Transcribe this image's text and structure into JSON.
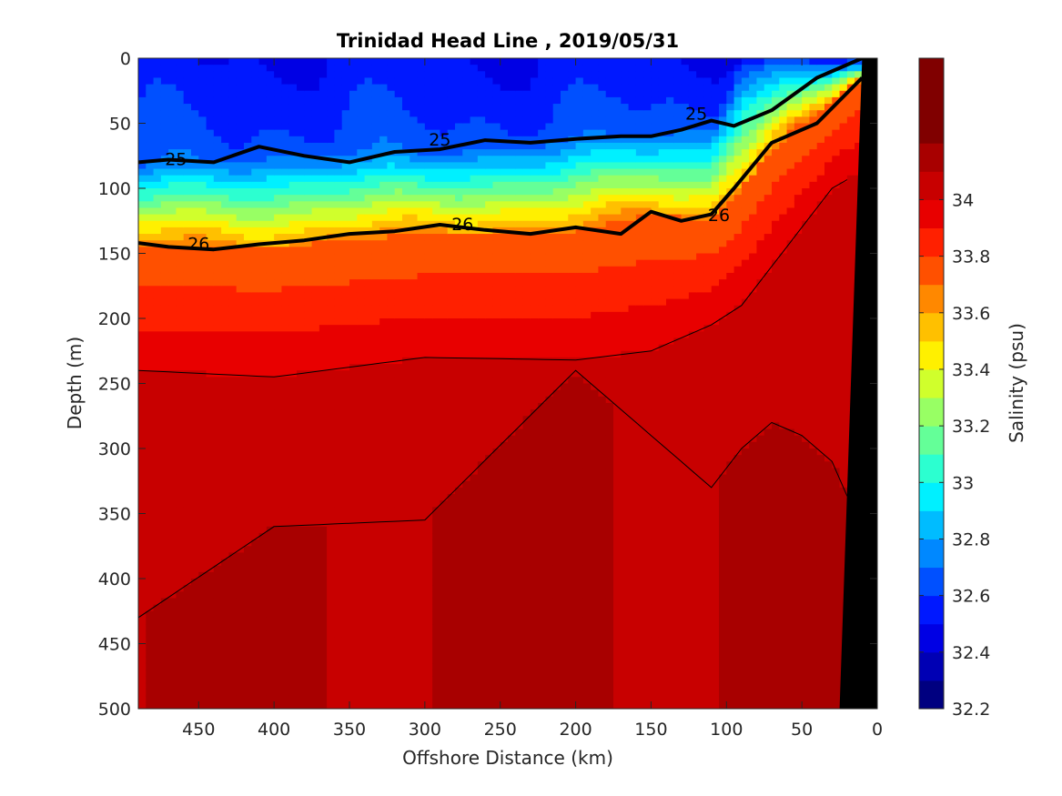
{
  "chart_data": {
    "type": "heatmap",
    "title": "Trinidad Head Line , 2019/05/31",
    "xlabel": "Offshore Distance (km)",
    "ylabel": "Depth (m)",
    "colorbar_label": "Salinity (psu)",
    "xlim": [
      490,
      0
    ],
    "ylim": [
      0,
      500
    ],
    "x_ticks": [
      "450",
      "400",
      "350",
      "300",
      "250",
      "200",
      "150",
      "100",
      "50",
      "0"
    ],
    "x_tick_values": [
      450,
      400,
      350,
      300,
      250,
      200,
      150,
      100,
      50,
      0
    ],
    "y_ticks": [
      "0",
      "50",
      "100",
      "150",
      "200",
      "250",
      "300",
      "350",
      "400",
      "450",
      "500"
    ],
    "y_tick_values": [
      0,
      50,
      100,
      150,
      200,
      250,
      300,
      350,
      400,
      450,
      500
    ],
    "colorbar_range": [
      32.2,
      34.5
    ],
    "colorbar_ticks": [
      "32.2",
      "32.4",
      "32.6",
      "32.8",
      "33",
      "33.2",
      "33.4",
      "33.6",
      "33.8",
      "34"
    ],
    "colorbar_tick_values": [
      32.2,
      32.4,
      32.6,
      32.8,
      33.0,
      33.2,
      33.4,
      33.6,
      33.8,
      34.0
    ],
    "colorbar_levels": [
      32.2,
      32.3,
      32.4,
      32.5,
      32.6,
      32.7,
      32.8,
      32.9,
      33.0,
      33.1,
      33.2,
      33.3,
      33.4,
      33.5,
      33.6,
      33.7,
      33.8,
      33.9,
      34.0,
      34.1,
      34.2,
      34.5
    ],
    "colormap": [
      "#000080",
      "#0000b4",
      "#0000e4",
      "#0018ff",
      "#0050ff",
      "#0088ff",
      "#00bcff",
      "#00f0ff",
      "#2cffd0",
      "#64ff98",
      "#98ff64",
      "#d0ff2c",
      "#fff000",
      "#ffc000",
      "#ff8800",
      "#ff5000",
      "#ff2000",
      "#e80000",
      "#c80000",
      "#a80000",
      "#800000"
    ],
    "salinity_profile": {
      "x": [
        490,
        400,
        300,
        200,
        150,
        110,
        90,
        70,
        50,
        30,
        15
      ],
      "depth_25": [
        80,
        72,
        70,
        60,
        55,
        52,
        5,
        5,
        5,
        5,
        5
      ],
      "depth_26": [
        143,
        145,
        135,
        133,
        120,
        125,
        100,
        70,
        50,
        35,
        18
      ],
      "depth_340": [
        240,
        245,
        230,
        232,
        225,
        205,
        190,
        160,
        130,
        100,
        90
      ],
      "depth_342": [
        430,
        360,
        355,
        240,
        290,
        330,
        300,
        280,
        290,
        310,
        350
      ]
    },
    "sigma_theta_contours": [
      {
        "label": "25",
        "depth": [
          80,
          78,
          80,
          68,
          75,
          80,
          72,
          70,
          63,
          65,
          62,
          60,
          60,
          55,
          48,
          52,
          40,
          15,
          0
        ]
      },
      {
        "label": "26",
        "depth": [
          142,
          145,
          147,
          143,
          140,
          135,
          133,
          128,
          132,
          135,
          130,
          135,
          118,
          125,
          120,
          100,
          65,
          50,
          15
        ]
      }
    ],
    "contour_x": [
      490,
      470,
      440,
      410,
      380,
      350,
      320,
      290,
      260,
      230,
      200,
      170,
      150,
      130,
      110,
      95,
      70,
      40,
      10
    ],
    "contour_labels": [
      {
        "text": "25",
        "x": 465,
        "depth": 78
      },
      {
        "text": "25",
        "x": 290,
        "depth": 63
      },
      {
        "text": "25",
        "x": 120,
        "depth": 43
      },
      {
        "text": "26",
        "x": 450,
        "depth": 143
      },
      {
        "text": "26",
        "x": 275,
        "depth": 128
      },
      {
        "text": "26",
        "x": 105,
        "depth": 121
      }
    ],
    "bathymetry": {
      "x": [
        25,
        10,
        0,
        0
      ],
      "depth": [
        500,
        0,
        0,
        500
      ],
      "color": "#000000"
    },
    "grid": false,
    "legend": "colorbar-right"
  }
}
